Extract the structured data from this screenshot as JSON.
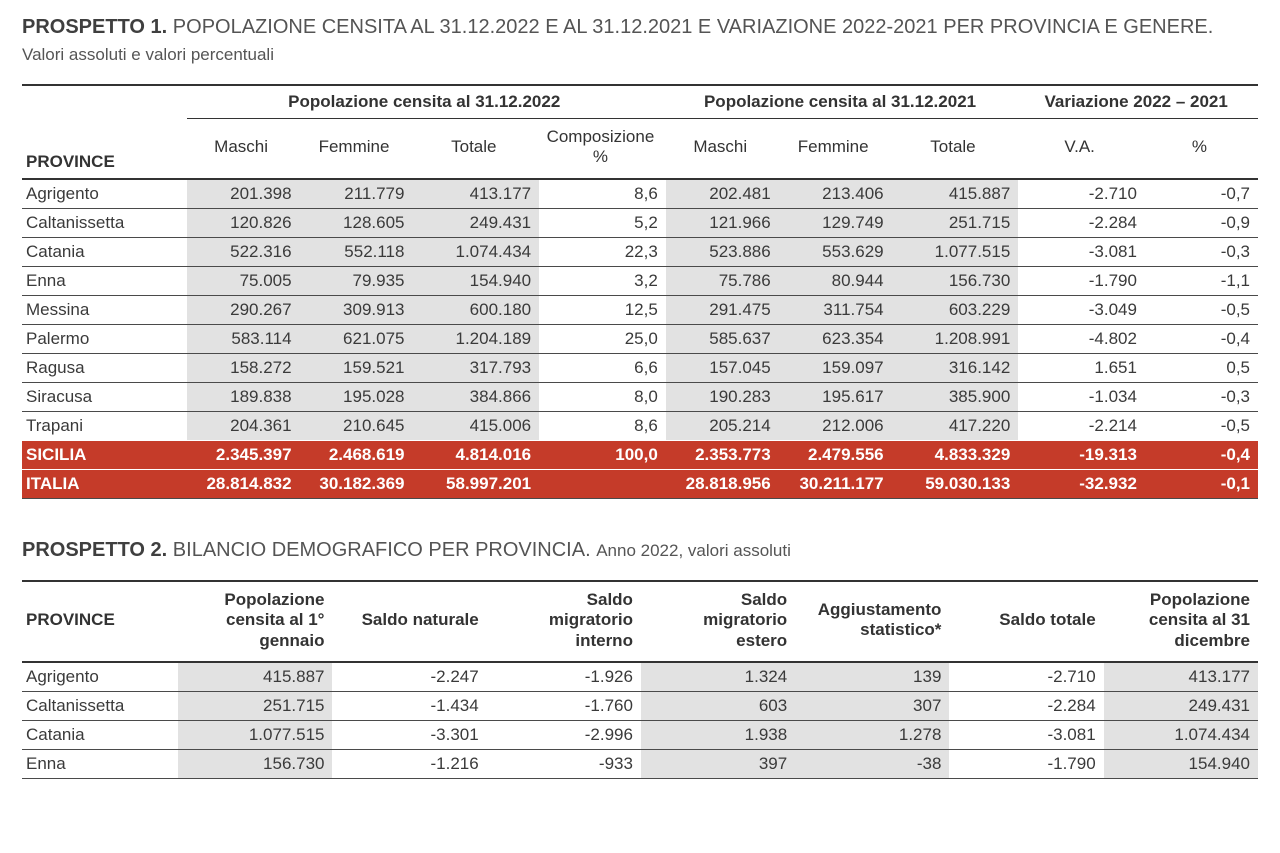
{
  "colors": {
    "text": "#3a3a3a",
    "rule": "#333333",
    "shade": "#e2e2e2",
    "highlight_bg": "#c53b29",
    "highlight_fg": "#ffffff",
    "background": "#ffffff"
  },
  "typography": {
    "body_fontsize_pt": 13,
    "caption_fontsize_pt": 15,
    "caption_sub_fontsize_pt": 13,
    "font_family": "Arial"
  },
  "prospetto1": {
    "type": "table",
    "caption_lead": "PROSPETTO 1.",
    "caption_main": "POPOLAZIONE CENSITA AL 31.12.2022 E AL 31.12.2021 E VARIAZIONE 2022-2021 PER PROVINCIA E GENERE.",
    "caption_sub": "Valori assoluti e valori percentuali",
    "row_header": "PROVINCE",
    "groups": [
      {
        "label": "Popolazione censita al 31.12.2022",
        "span": 4
      },
      {
        "label": "Popolazione censita al 31.12.2021",
        "span": 3
      },
      {
        "label": "Variazione 2022 – 2021",
        "span": 2
      }
    ],
    "columns": [
      "Maschi",
      "Femmine",
      "Totale",
      "Composizione %",
      "Maschi",
      "Femmine",
      "Totale",
      "V.A.",
      "%"
    ],
    "shaded_cols": [
      0,
      1,
      2,
      4,
      5,
      6
    ],
    "rows": [
      {
        "label": "Agrigento",
        "cells": [
          "201.398",
          "211.779",
          "413.177",
          "8,6",
          "202.481",
          "213.406",
          "415.887",
          "-2.710",
          "-0,7"
        ]
      },
      {
        "label": "Caltanissetta",
        "cells": [
          "120.826",
          "128.605",
          "249.431",
          "5,2",
          "121.966",
          "129.749",
          "251.715",
          "-2.284",
          "-0,9"
        ]
      },
      {
        "label": "Catania",
        "cells": [
          "522.316",
          "552.118",
          "1.074.434",
          "22,3",
          "523.886",
          "553.629",
          "1.077.515",
          "-3.081",
          "-0,3"
        ]
      },
      {
        "label": "Enna",
        "cells": [
          "75.005",
          "79.935",
          "154.940",
          "3,2",
          "75.786",
          "80.944",
          "156.730",
          "-1.790",
          "-1,1"
        ]
      },
      {
        "label": "Messina",
        "cells": [
          "290.267",
          "309.913",
          "600.180",
          "12,5",
          "291.475",
          "311.754",
          "603.229",
          "-3.049",
          "-0,5"
        ]
      },
      {
        "label": "Palermo",
        "cells": [
          "583.114",
          "621.075",
          "1.204.189",
          "25,0",
          "585.637",
          "623.354",
          "1.208.991",
          "-4.802",
          "-0,4"
        ]
      },
      {
        "label": "Ragusa",
        "cells": [
          "158.272",
          "159.521",
          "317.793",
          "6,6",
          "157.045",
          "159.097",
          "316.142",
          "1.651",
          "0,5"
        ]
      },
      {
        "label": "Siracusa",
        "cells": [
          "189.838",
          "195.028",
          "384.866",
          "8,0",
          "190.283",
          "195.617",
          "385.900",
          "-1.034",
          "-0,3"
        ]
      },
      {
        "label": "Trapani",
        "cells": [
          "204.361",
          "210.645",
          "415.006",
          "8,6",
          "205.214",
          "212.006",
          "417.220",
          "-2.214",
          "-0,5"
        ]
      }
    ],
    "totals": [
      {
        "label": "SICILIA",
        "cells": [
          "2.345.397",
          "2.468.619",
          "4.814.016",
          "100,0",
          "2.353.773",
          "2.479.556",
          "4.833.329",
          "-19.313",
          "-0,4"
        ]
      },
      {
        "label": "ITALIA",
        "cells": [
          "28.814.832",
          "30.182.369",
          "58.997.201",
          "",
          "28.818.956",
          "30.211.177",
          "59.030.133",
          "-32.932",
          "-0,1"
        ]
      }
    ]
  },
  "prospetto2": {
    "type": "table",
    "caption_lead": "PROSPETTO 2.",
    "caption_main": "BILANCIO DEMOGRAFICO PER PROVINCIA.",
    "caption_sub": "Anno 2022, valori assoluti",
    "row_header": "PROVINCE",
    "columns": [
      "Popolazione censita al 1° gennaio",
      "Saldo naturale",
      "Saldo migratorio interno",
      "Saldo migratorio estero",
      "Aggiustamento statistico*",
      "Saldo totale",
      "Popolazione censita al 31 dicembre"
    ],
    "shaded_cols": [
      0,
      3,
      4,
      6
    ],
    "rows": [
      {
        "label": "Agrigento",
        "cells": [
          "415.887",
          "-2.247",
          "-1.926",
          "1.324",
          "139",
          "-2.710",
          "413.177"
        ]
      },
      {
        "label": "Caltanissetta",
        "cells": [
          "251.715",
          "-1.434",
          "-1.760",
          "603",
          "307",
          "-2.284",
          "249.431"
        ]
      },
      {
        "label": "Catania",
        "cells": [
          "1.077.515",
          "-3.301",
          "-2.996",
          "1.938",
          "1.278",
          "-3.081",
          "1.074.434"
        ]
      },
      {
        "label": "Enna",
        "cells": [
          "156.730",
          "-1.216",
          "-933",
          "397",
          "-38",
          "-1.790",
          "154.940"
        ]
      }
    ]
  }
}
